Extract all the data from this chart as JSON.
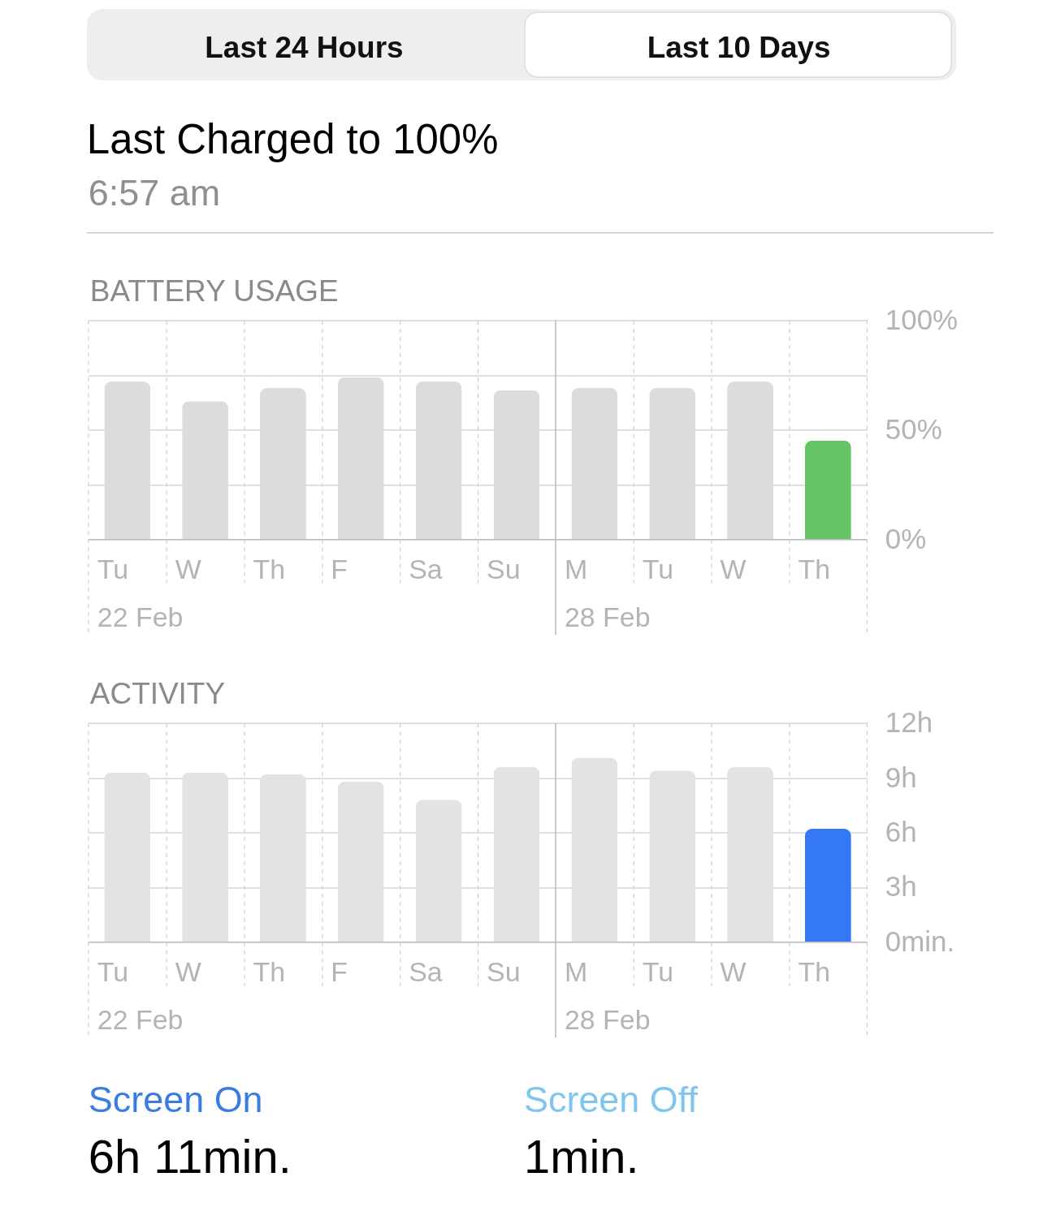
{
  "chart_data": [
    {
      "type": "other",
      "title": "Last Charged to 100%",
      "subtitle": "6:57 am",
      "annotations": [
        "Last 24 Hours",
        "Last 10 Days"
      ]
    },
    {
      "type": "bar",
      "title": "BATTERY USAGE",
      "categories": [
        "Tu",
        "W",
        "Th",
        "F",
        "Sa",
        "Su",
        "M",
        "Tu",
        "W",
        "Th"
      ],
      "values": [
        72,
        63,
        69,
        74,
        72,
        68,
        69,
        69,
        72,
        45
      ],
      "colors": [
        "#dcdcdc",
        "#dcdcdc",
        "#dcdcdc",
        "#dcdcdc",
        "#dcdcdc",
        "#dcdcdc",
        "#dcdcdc",
        "#dcdcdc",
        "#dcdcdc",
        "#65c466"
      ],
      "ylim": [
        0,
        100
      ],
      "yticks": [
        {
          "value": 0,
          "label": "0%"
        },
        {
          "value": 25,
          "label": null
        },
        {
          "value": 50,
          "label": "50%"
        },
        {
          "value": 75,
          "label": null
        },
        {
          "value": 100,
          "label": "100%"
        }
      ],
      "grid": true,
      "ref_lines": [
        {
          "axis": "x",
          "value": "Tu",
          "label": "22 Feb",
          "color": "#c4c4c8",
          "line_style": "dashed"
        },
        {
          "axis": "x",
          "value": "M",
          "label": "28 Feb",
          "color": "#b8b8bc",
          "line_style": "solid"
        }
      ]
    },
    {
      "type": "bar",
      "title": "ACTIVITY",
      "categories": [
        "Tu",
        "W",
        "Th",
        "F",
        "Sa",
        "Su",
        "M",
        "Tu",
        "W",
        "Th"
      ],
      "values": [
        9.3,
        9.3,
        9.2,
        8.8,
        7.8,
        9.6,
        10.1,
        9.4,
        9.6,
        6.2
      ],
      "colors": [
        "#e3e3e3",
        "#e3e3e3",
        "#e3e3e3",
        "#e3e3e3",
        "#e3e3e3",
        "#e3e3e3",
        "#e3e3e3",
        "#e3e3e3",
        "#e3e3e3",
        "#3478f6"
      ],
      "ylim": [
        0,
        12
      ],
      "yticks": [
        {
          "value": 0,
          "label": "0min."
        },
        {
          "value": 3,
          "label": "3h"
        },
        {
          "value": 6,
          "label": "6h"
        },
        {
          "value": 9,
          "label": "9h"
        },
        {
          "value": 12,
          "label": "12h"
        }
      ],
      "grid": true,
      "ref_lines": [
        {
          "axis": "x",
          "value": "Tu",
          "label": "22 Feb",
          "color": "#c4c4c8",
          "line_style": "dashed"
        },
        {
          "axis": "x",
          "value": "M",
          "label": "28 Feb",
          "color": "#b8b8bc",
          "line_style": "solid"
        }
      ]
    },
    {
      "type": "other",
      "annotations": [
        "Screen On",
        "6h 11min.",
        "Screen Off",
        "1min."
      ]
    }
  ]
}
